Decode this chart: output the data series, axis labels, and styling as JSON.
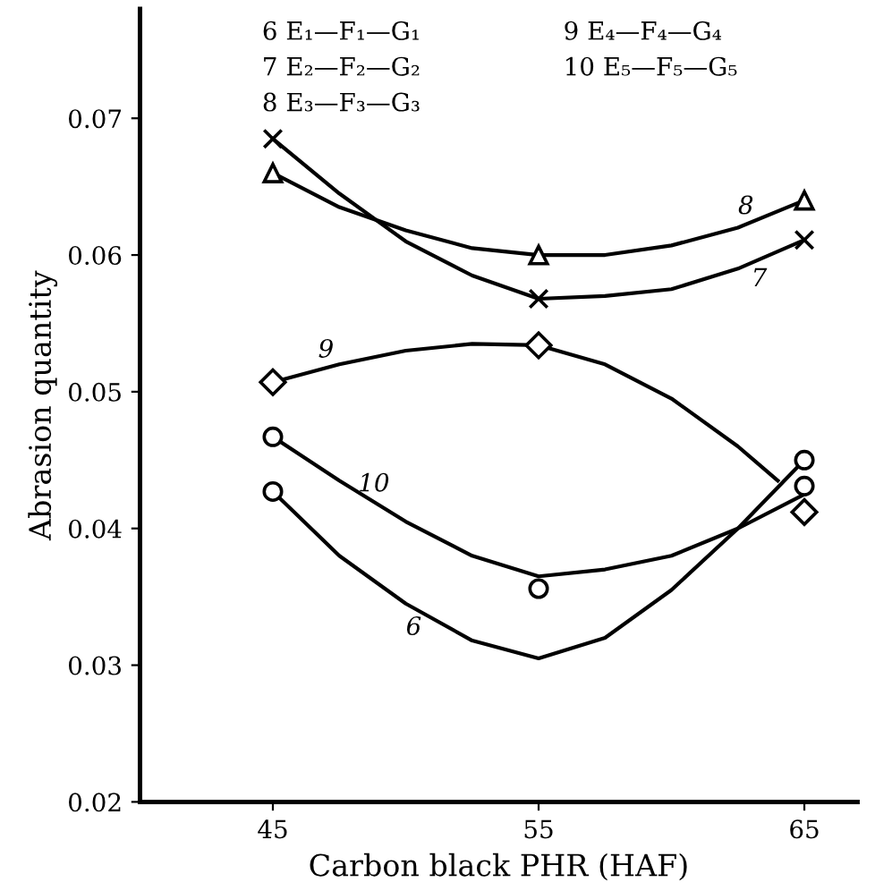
{
  "chart_data": {
    "type": "line",
    "xlabel": "Carbon black PHR (HAF)",
    "ylabel": "Abrasion quantity",
    "xlim": [
      40,
      67
    ],
    "xticks": [
      45,
      55,
      65
    ],
    "ylim": [
      0.02,
      0.078
    ],
    "yticks": [
      0.02,
      0.03,
      0.04,
      0.05,
      0.06,
      0.07
    ],
    "grid": false,
    "legend": false,
    "series": [
      {
        "name": "6",
        "color": "#000000",
        "marker": "none",
        "x": [
          45,
          47.5,
          50,
          52.5,
          55,
          57.5,
          60,
          62.5,
          65
        ],
        "values": [
          0.0427,
          0.038,
          0.0345,
          0.0318,
          0.0305,
          0.032,
          0.0355,
          0.04,
          0.045
        ]
      },
      {
        "name": "7",
        "color": "#000000",
        "marker": "none",
        "x": [
          45,
          47.5,
          50,
          52.5,
          55,
          57.5,
          60,
          62.5,
          65
        ],
        "values": [
          0.0685,
          0.0645,
          0.061,
          0.0585,
          0.0568,
          0.057,
          0.0575,
          0.059,
          0.0611
        ]
      },
      {
        "name": "8",
        "color": "#000000",
        "marker": "none",
        "x": [
          45,
          47.5,
          50,
          52.5,
          55,
          57.5,
          60,
          62.5,
          65
        ],
        "values": [
          0.066,
          0.0635,
          0.0618,
          0.0605,
          0.06,
          0.06,
          0.0607,
          0.062,
          0.064
        ]
      },
      {
        "name": "9",
        "color": "#000000",
        "marker": "none",
        "x": [
          45,
          47.5,
          50,
          52.5,
          55,
          57.5,
          60,
          62.5,
          64
        ],
        "values": [
          0.0507,
          0.052,
          0.053,
          0.0535,
          0.0534,
          0.052,
          0.0495,
          0.046,
          0.0435
        ]
      },
      {
        "name": "10",
        "color": "#000000",
        "marker": "none",
        "x": [
          45,
          47.5,
          50,
          52.5,
          55,
          57.5,
          60,
          62.5,
          65
        ],
        "values": [
          0.0467,
          0.0435,
          0.0405,
          0.038,
          0.0365,
          0.037,
          0.038,
          0.04,
          0.0425
        ]
      },
      {
        "type": "scatter",
        "color": "#000000",
        "marker": "circle",
        "x": [
          45,
          65
        ],
        "values": [
          0.0427,
          0.045
        ]
      },
      {
        "type": "scatter",
        "color": "#000000",
        "marker": "cross",
        "x": [
          45,
          55,
          65
        ],
        "values": [
          0.0685,
          0.0568,
          0.0611
        ]
      },
      {
        "type": "scatter",
        "color": "#000000",
        "marker": "triangle",
        "x": [
          45,
          55,
          65
        ],
        "values": [
          0.066,
          0.06,
          0.064
        ]
      },
      {
        "type": "scatter",
        "color": "#000000",
        "marker": "diamond",
        "x": [
          45,
          55,
          65
        ],
        "values": [
          0.0507,
          0.0534,
          0.0412
        ]
      },
      {
        "type": "scatter",
        "color": "#000000",
        "marker": "circle",
        "x": [
          45,
          55,
          65
        ],
        "values": [
          0.0467,
          0.0356,
          0.0431
        ]
      }
    ],
    "annotations": [
      "6 E₁—F₁—G₁",
      "7 E₂—F₂—G₂",
      "8 E₃—F₃—G₃",
      "9 E₄—F₄—G₄",
      "10 E₅—F₅—G₅"
    ]
  }
}
